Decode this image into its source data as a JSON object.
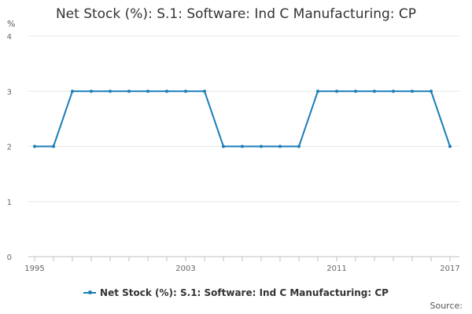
{
  "colors": {
    "series": "#1a7db6",
    "grid": "#e6e6e6",
    "axis": "#c0c0c0"
  },
  "chart_data": {
    "type": "line",
    "title": "Net Stock (%): S.1: Software: Ind C Manufacturing: CP",
    "unit": "%",
    "x": [
      1995,
      1996,
      1997,
      1998,
      1999,
      2000,
      2001,
      2002,
      2003,
      2004,
      2005,
      2006,
      2007,
      2008,
      2009,
      2010,
      2011,
      2012,
      2013,
      2014,
      2015,
      2016,
      2017
    ],
    "series": [
      {
        "name": "Net Stock (%): S.1: Software: Ind C Manufacturing: CP",
        "values": [
          2,
          2,
          3,
          3,
          3,
          3,
          3,
          3,
          3,
          3,
          2,
          2,
          2,
          2,
          2,
          3,
          3,
          3,
          3,
          3,
          3,
          3,
          2
        ]
      }
    ],
    "y_ticks": [
      0,
      1,
      2,
      3,
      4
    ],
    "x_tick_labels": [
      1995,
      2003,
      2011,
      2017
    ],
    "xlim": [
      1995,
      2017
    ],
    "ylim": [
      0,
      4
    ],
    "grid": true,
    "legend_position": "bottom"
  },
  "source_label": "Source:"
}
